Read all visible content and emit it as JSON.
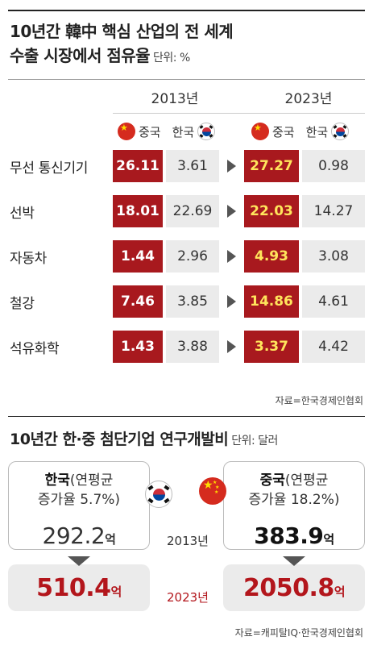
{
  "section1": {
    "title_line1": "10년간 韓中 핵심 산업의 전 세계",
    "title_line2": "수출 시장에서 점유율",
    "unit": "단위: %",
    "years": [
      "2013년",
      "2023년"
    ],
    "legend": {
      "china": "중국",
      "korea": "한국"
    },
    "source": "자료=한국경제인협회"
  },
  "section2": {
    "title": "10년간 한·중 첨단기업 연구개발비",
    "unit": "단위: 달러",
    "korea_label_bold": "한국",
    "korea_label_rest": "(연평균",
    "korea_label_line2": "증가율 5.7%)",
    "china_label_bold": "중국",
    "china_label_rest": "(연평균",
    "china_label_line2": "증가율 18.2%)",
    "year_2013": "2013년",
    "year_2023": "2023년",
    "korea_2013": "292.2",
    "korea_2023": "510.4",
    "china_2013": "383.9",
    "china_2023": "2050.8",
    "unit_eok": "억",
    "source": "자료=캐피탈IQ·한국경제인협회"
  },
  "colors": {
    "china_red": "#a8191e",
    "highlight_yellow": "#ffe55c",
    "korea_gray": "#ebebeb",
    "accent_red": "#b3161c"
  },
  "chart_data": [
    {
      "type": "table",
      "title": "10년간 韓中 핵심 산업의 전 세계 수출 시장에서 점유율",
      "unit": "%",
      "categories": [
        "무선 통신기기",
        "선박",
        "자동차",
        "철강",
        "석유화학"
      ],
      "series": [
        {
          "name": "중국 2013년",
          "values": [
            26.11,
            18.01,
            1.44,
            7.46,
            1.43
          ]
        },
        {
          "name": "한국 2013년",
          "values": [
            3.61,
            22.69,
            2.96,
            3.85,
            3.88
          ]
        },
        {
          "name": "중국 2023년",
          "values": [
            27.27,
            22.03,
            4.93,
            14.86,
            3.37
          ]
        },
        {
          "name": "한국 2023년",
          "values": [
            0.98,
            14.27,
            3.08,
            4.61,
            4.42
          ]
        }
      ]
    },
    {
      "type": "table",
      "title": "10년간 한·중 첨단기업 연구개발비",
      "unit": "억 달러",
      "categories": [
        "2013년",
        "2023년"
      ],
      "series": [
        {
          "name": "한국",
          "values": [
            292.2,
            510.4
          ]
        },
        {
          "name": "중국",
          "values": [
            383.9,
            2050.8
          ]
        }
      ]
    }
  ]
}
